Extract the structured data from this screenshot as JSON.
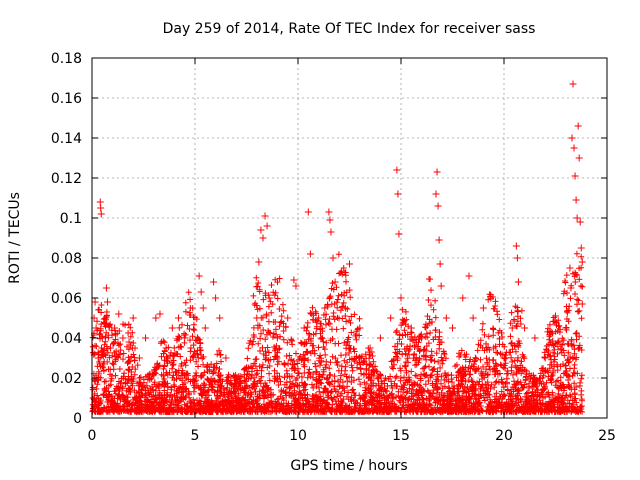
{
  "chart_data": {
    "type": "scatter",
    "title": "Day 259 of 2014, Rate Of TEC Index for receiver sass",
    "xlabel": "GPS time / hours",
    "ylabel": "ROTI / TECUs",
    "xlim": [
      0,
      25
    ],
    "ylim": [
      0,
      0.18
    ],
    "xticks": [
      0,
      5,
      10,
      15,
      20,
      25
    ],
    "yticks": [
      0,
      0.02,
      0.04,
      0.06,
      0.08,
      0.1,
      0.12,
      0.14,
      0.16,
      0.18
    ],
    "xtick_labels": [
      "0",
      "5",
      "10",
      "15",
      "20",
      "25"
    ],
    "ytick_labels": [
      "0",
      "0.02",
      "0.04",
      "0.06",
      "0.08",
      "0.1",
      "0.12",
      "0.14",
      "0.16",
      "0.18"
    ],
    "grid": true,
    "marker": "+",
    "color": "#ff0000",
    "points": [
      [
        0.05,
        0.01
      ],
      [
        0.1,
        0.05
      ],
      [
        0.15,
        0.058
      ],
      [
        0.2,
        0.045
      ],
      [
        0.3,
        0.03
      ],
      [
        0.4,
        0.108
      ],
      [
        0.42,
        0.105
      ],
      [
        0.45,
        0.102
      ],
      [
        0.5,
        0.04
      ],
      [
        0.6,
        0.047
      ],
      [
        0.7,
        0.065
      ],
      [
        0.75,
        0.058
      ],
      [
        0.9,
        0.035
      ],
      [
        1.1,
        0.045
      ],
      [
        1.3,
        0.052
      ],
      [
        1.5,
        0.04
      ],
      [
        1.8,
        0.038
      ],
      [
        2.0,
        0.05
      ],
      [
        2.3,
        0.03
      ],
      [
        2.6,
        0.04
      ],
      [
        3.1,
        0.05
      ],
      [
        3.3,
        0.052
      ],
      [
        3.6,
        0.035
      ],
      [
        3.9,
        0.045
      ],
      [
        4.2,
        0.05
      ],
      [
        4.5,
        0.04
      ],
      [
        4.8,
        0.035
      ],
      [
        5.2,
        0.071
      ],
      [
        5.3,
        0.063
      ],
      [
        5.4,
        0.055
      ],
      [
        5.5,
        0.045
      ],
      [
        5.9,
        0.068
      ],
      [
        6.0,
        0.06
      ],
      [
        6.2,
        0.05
      ],
      [
        6.5,
        0.03
      ],
      [
        7.0,
        0.02
      ],
      [
        7.5,
        0.025
      ],
      [
        8.0,
        0.05
      ],
      [
        8.1,
        0.078
      ],
      [
        8.2,
        0.094
      ],
      [
        8.3,
        0.09
      ],
      [
        8.4,
        0.101
      ],
      [
        8.5,
        0.096
      ],
      [
        8.6,
        0.06
      ],
      [
        9.0,
        0.04
      ],
      [
        9.5,
        0.05
      ],
      [
        9.8,
        0.069
      ],
      [
        9.9,
        0.066
      ],
      [
        10.3,
        0.045
      ],
      [
        10.5,
        0.103
      ],
      [
        10.6,
        0.082
      ],
      [
        11.0,
        0.05
      ],
      [
        11.3,
        0.055
      ],
      [
        11.5,
        0.103
      ],
      [
        11.55,
        0.099
      ],
      [
        11.6,
        0.093
      ],
      [
        11.7,
        0.08
      ],
      [
        11.8,
        0.068
      ],
      [
        12.3,
        0.055
      ],
      [
        12.5,
        0.077
      ],
      [
        13.0,
        0.045
      ],
      [
        13.5,
        0.035
      ],
      [
        14.0,
        0.04
      ],
      [
        14.5,
        0.05
      ],
      [
        14.8,
        0.124
      ],
      [
        14.85,
        0.112
      ],
      [
        14.9,
        0.092
      ],
      [
        15.0,
        0.06
      ],
      [
        15.5,
        0.045
      ],
      [
        16.0,
        0.04
      ],
      [
        16.5,
        0.048
      ],
      [
        16.7,
        0.112
      ],
      [
        16.75,
        0.123
      ],
      [
        16.8,
        0.106
      ],
      [
        16.85,
        0.089
      ],
      [
        16.9,
        0.077
      ],
      [
        16.95,
        0.066
      ],
      [
        17.2,
        0.05
      ],
      [
        17.5,
        0.045
      ],
      [
        18.0,
        0.06
      ],
      [
        18.3,
        0.071
      ],
      [
        18.5,
        0.05
      ],
      [
        19.0,
        0.055
      ],
      [
        19.5,
        0.035
      ],
      [
        20.0,
        0.03
      ],
      [
        20.4,
        0.045
      ],
      [
        20.6,
        0.086
      ],
      [
        20.65,
        0.08
      ],
      [
        20.7,
        0.068
      ],
      [
        21.0,
        0.045
      ],
      [
        21.5,
        0.04
      ],
      [
        22.0,
        0.03
      ],
      [
        22.5,
        0.051
      ],
      [
        23.0,
        0.045
      ],
      [
        23.2,
        0.075
      ],
      [
        23.25,
        0.065
      ],
      [
        23.3,
        0.14
      ],
      [
        23.35,
        0.167
      ],
      [
        23.4,
        0.135
      ],
      [
        23.45,
        0.121
      ],
      [
        23.5,
        0.109
      ],
      [
        23.55,
        0.1
      ],
      [
        23.6,
        0.146
      ],
      [
        23.65,
        0.13
      ],
      [
        23.7,
        0.098
      ],
      [
        23.75,
        0.085
      ],
      [
        23.8,
        0.078
      ],
      [
        23.8,
        0.057
      ]
    ]
  }
}
